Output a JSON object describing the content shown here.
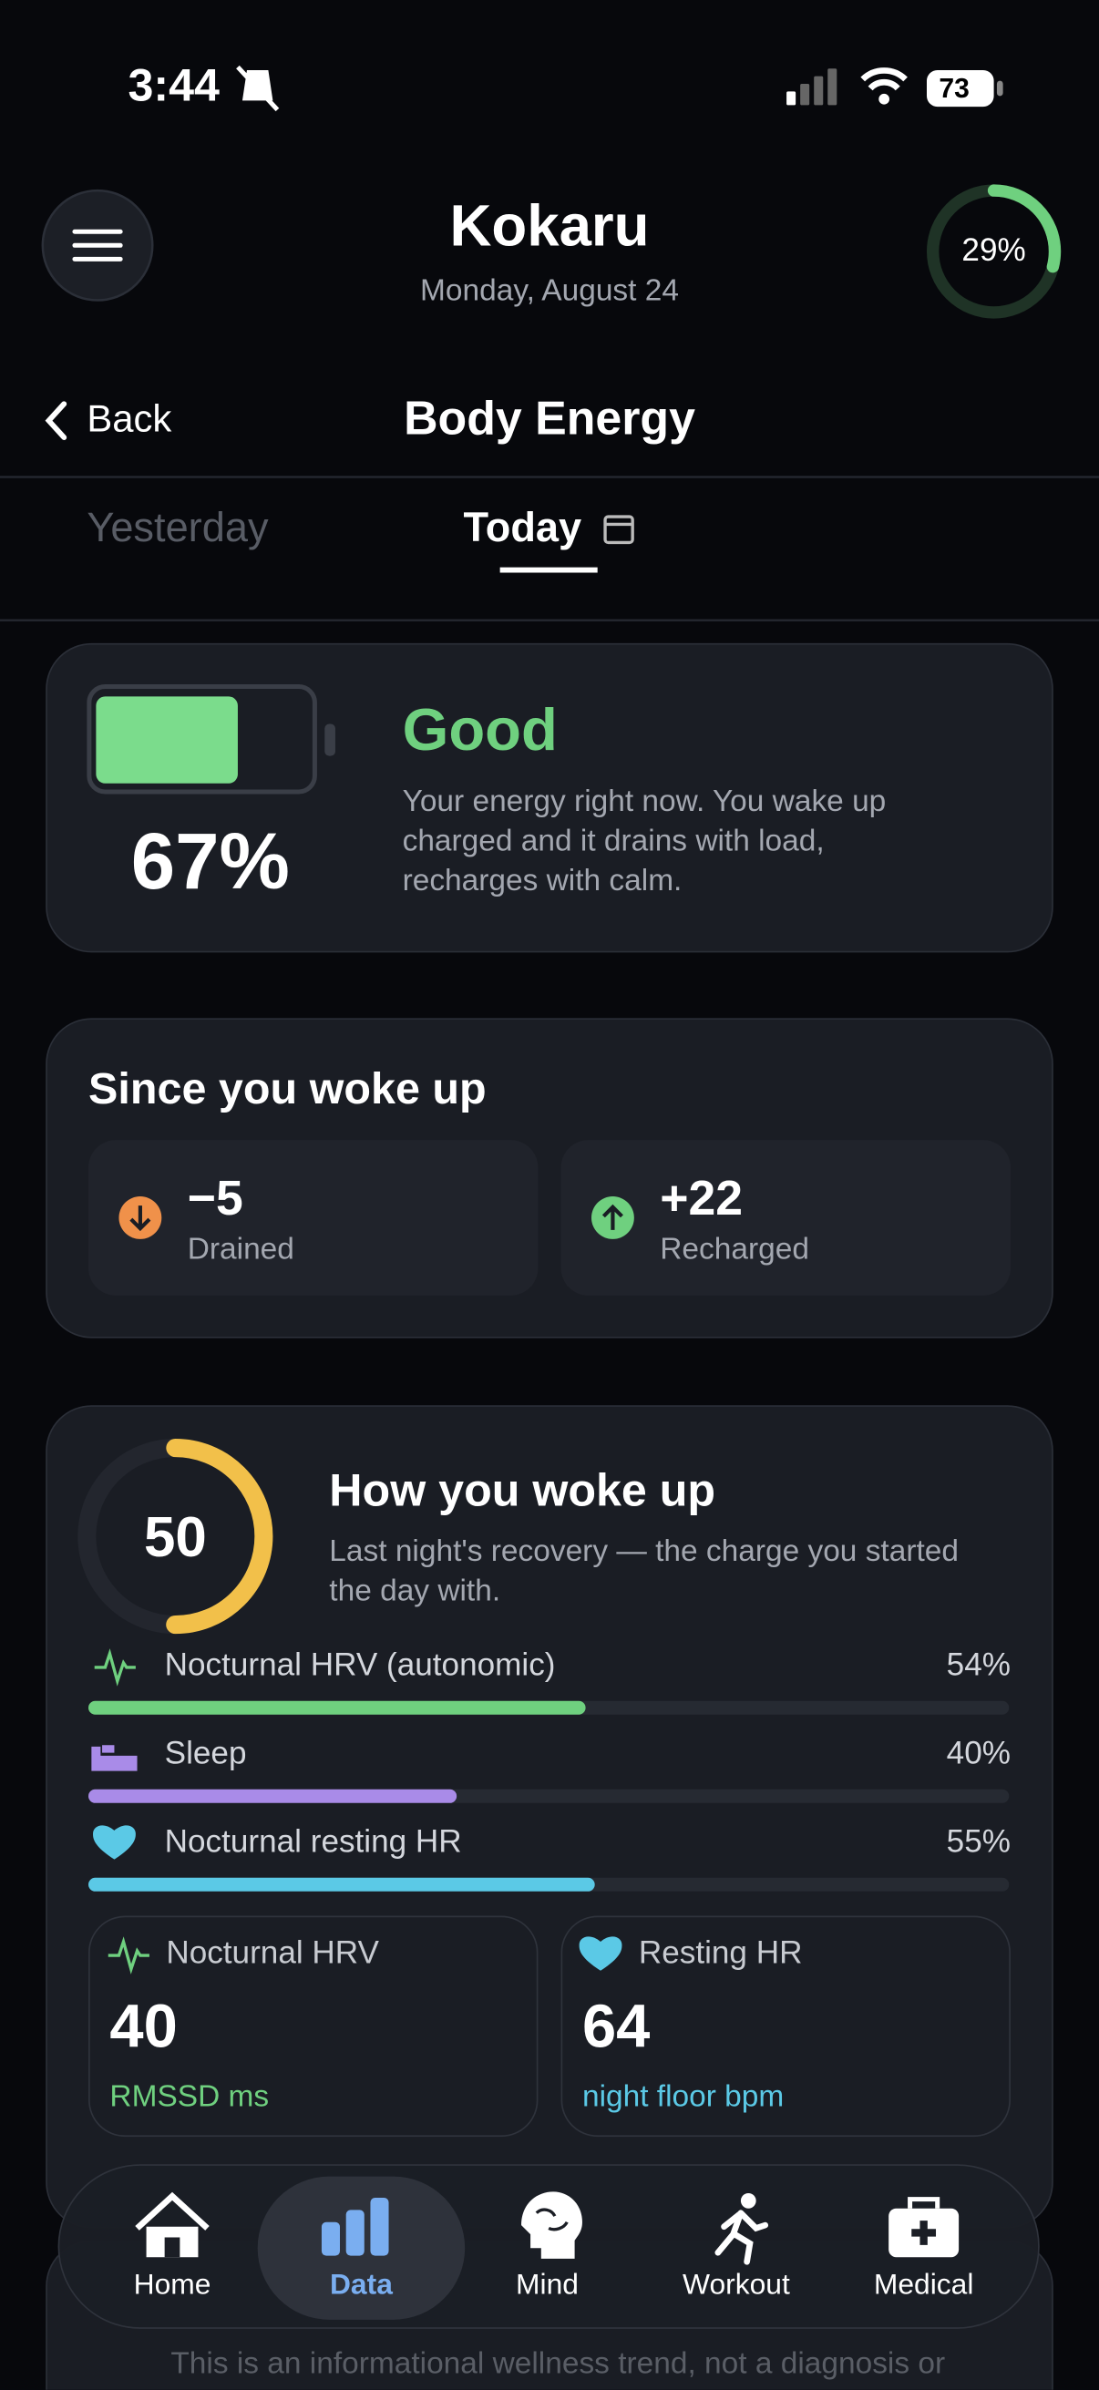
{
  "status_bar": {
    "time": "3:44",
    "battery": "73"
  },
  "header": {
    "title": "Kokaru",
    "date": "Monday, August 24",
    "ring": {
      "value": 29,
      "label": "29%"
    }
  },
  "nav_bar": {
    "back": "Back",
    "title": "Body Energy"
  },
  "tabs": [
    "Yesterday",
    "Today"
  ],
  "energy_card": {
    "battery": {
      "value": 67,
      "label": "67%"
    },
    "status": "Good",
    "description": "Your energy right now. You wake up charged and it drains with load, recharges with calm."
  },
  "since_card": {
    "title": "Since you woke up",
    "tiles": [
      {
        "value": "−5",
        "label": "Drained"
      },
      {
        "value": "+22",
        "label": "Recharged"
      }
    ]
  },
  "wake_card": {
    "score": 50,
    "title": "How you woke up",
    "description": "Last night's recovery — the charge you started the day with.",
    "factors": [
      {
        "label": "Nocturnal HRV (autonomic)",
        "value": 54,
        "value_label": "54%",
        "color": "#6fd07f"
      },
      {
        "label": "Sleep",
        "value": 40,
        "value_label": "40%",
        "color": "#a98be8"
      },
      {
        "label": "Nocturnal resting HR",
        "value": 55,
        "value_label": "55%",
        "color": "#5bc9e6"
      }
    ],
    "metrics": [
      {
        "label": "Nocturnal HRV",
        "value": 40,
        "unit": "RMSSD ms",
        "color": "#6fd07f"
      },
      {
        "label": "Resting HR",
        "value": 64,
        "unit": "night floor bpm",
        "color": "#5bc9e6"
      }
    ]
  },
  "disclaimer": "This is an informational wellness trend, not a diagnosis or",
  "bottom_nav": [
    "Home",
    "Data",
    "Mind",
    "Workout",
    "Medical"
  ]
}
